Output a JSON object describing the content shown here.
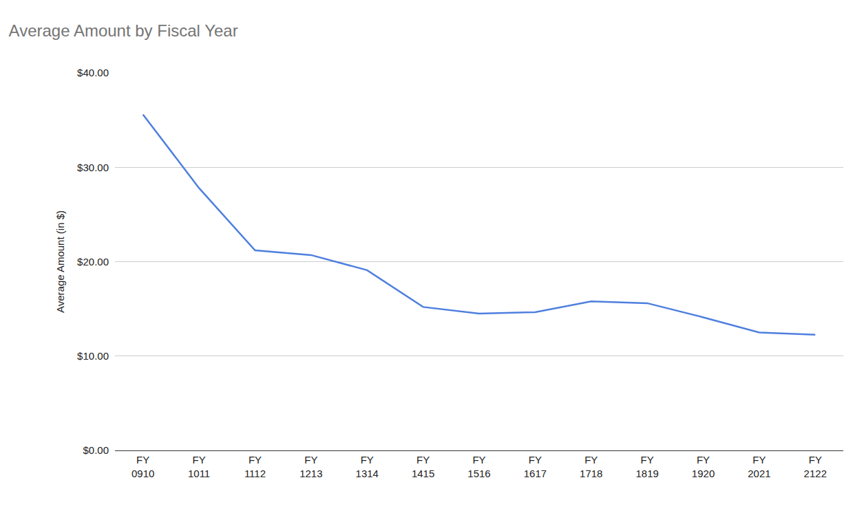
{
  "chart_data": {
    "type": "line",
    "title": "Average Amount by Fiscal Year",
    "y_label": "Average Amount (in $)",
    "categories": [
      "FY 0910",
      "FY 1011",
      "FY 1112",
      "FY 1213",
      "FY 1314",
      "FY 1415",
      "FY 1516",
      "FY 1617",
      "FY 1718",
      "FY 1819",
      "FY 1920",
      "FY 2021",
      "FY 2122"
    ],
    "values": [
      35.6,
      27.8,
      21.2,
      20.7,
      19.1,
      15.2,
      14.5,
      14.65,
      15.8,
      15.6,
      14.1,
      12.5,
      12.25
    ],
    "color": "#4e7fde",
    "ylim": [
      0,
      40
    ],
    "yticks": [
      {
        "value": 0,
        "label": "$0.00"
      },
      {
        "value": 10,
        "label": "$10.00"
      },
      {
        "value": 20,
        "label": "$20.00"
      },
      {
        "value": 30,
        "label": "$30.00"
      },
      {
        "value": 40,
        "label": "$40.00"
      }
    ],
    "grid": true
  }
}
